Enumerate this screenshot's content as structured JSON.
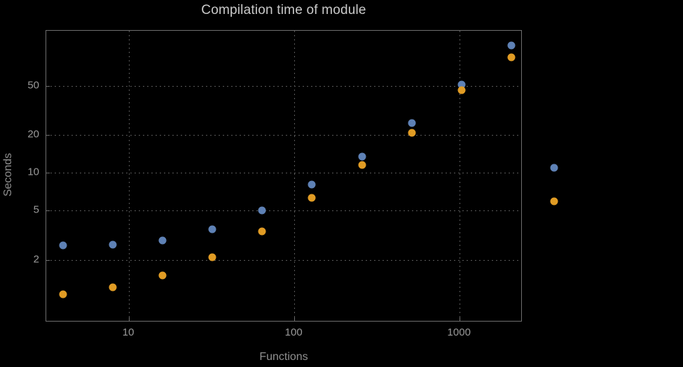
{
  "title": "Compilation time of module",
  "colors": {
    "background": "#000000",
    "frame": "#6e6e6e",
    "grid": "#585858",
    "title_text": "#c9c9c9",
    "axis_label_text": "#8f8f8f",
    "tick_label_text": "#9a9a9a",
    "series_blue": "#5e81b5",
    "series_orange": "#e19c24"
  },
  "chart_data": {
    "type": "scatter",
    "title": "Compilation time of module",
    "xlabel": "Functions",
    "ylabel": "Seconds",
    "xscale": "log",
    "yscale": "log",
    "xlim": [
      3.16,
      2400
    ],
    "ylim": [
      0.63,
      138
    ],
    "grid": true,
    "x_gridlines": [
      10,
      100,
      1000
    ],
    "y_gridlines": [
      2,
      5,
      10,
      20,
      50
    ],
    "x_tick_labels": [
      "10",
      "100",
      "1000"
    ],
    "y_tick_labels": [
      "2",
      "5",
      "10",
      "20",
      "50"
    ],
    "series": [
      {
        "name": "blue-series",
        "color": "#5e81b5",
        "x": [
          4,
          8,
          16,
          32,
          64,
          128,
          256,
          512,
          1024,
          2048
        ],
        "values": [
          2.6,
          2.65,
          2.85,
          3.5,
          5.0,
          8.0,
          13.5,
          25,
          51,
          105
        ]
      },
      {
        "name": "orange-series",
        "color": "#e19c24",
        "x": [
          4,
          8,
          16,
          32,
          64,
          128,
          256,
          512,
          1024,
          2048
        ],
        "values": [
          1.05,
          1.2,
          1.5,
          2.1,
          3.4,
          6.3,
          11.5,
          21,
          46,
          84
        ]
      }
    ],
    "legend": {
      "position": "right-outside",
      "entries": [
        {
          "series": "blue-series",
          "color": "#5e81b5",
          "label": ""
        },
        {
          "series": "orange-series",
          "color": "#e19c24",
          "label": ""
        }
      ]
    }
  }
}
